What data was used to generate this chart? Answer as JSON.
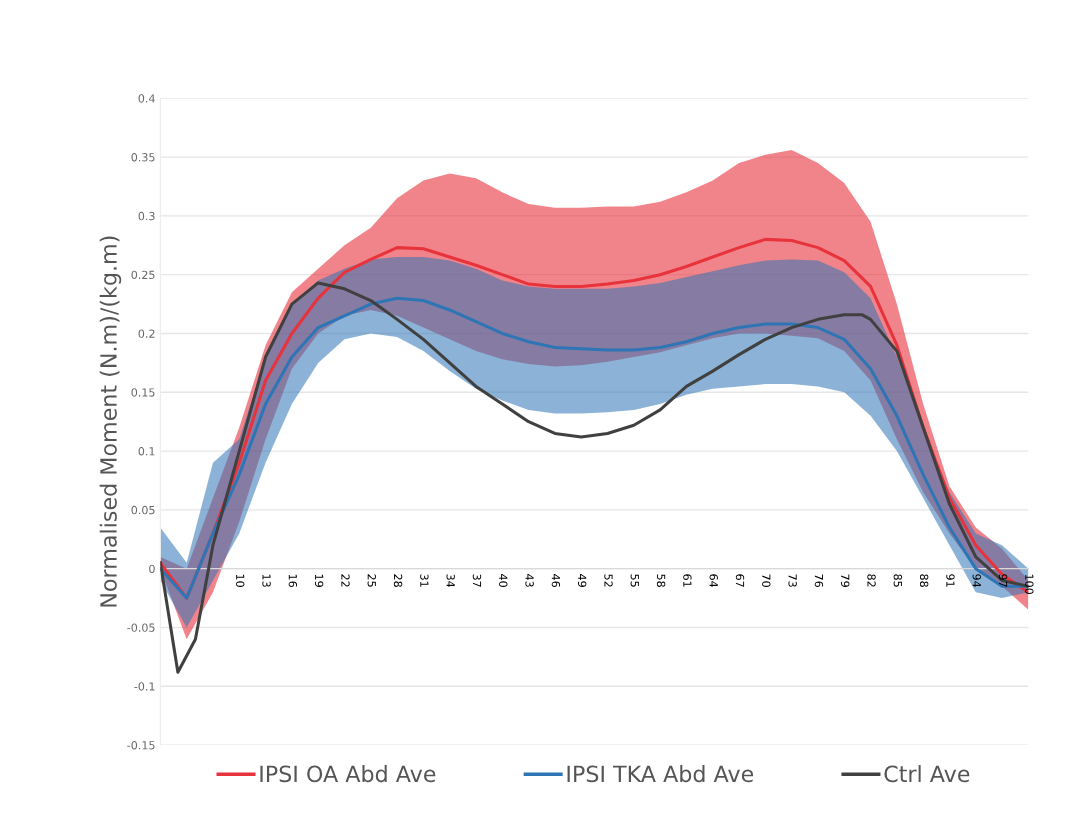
{
  "chart_data": {
    "type": "line",
    "ylabel": "Normalised Moment (N.m)/(kg.m)",
    "xlim": [
      1,
      100
    ],
    "xticks": [
      10,
      13,
      16,
      19,
      22,
      25,
      28,
      31,
      34,
      37,
      40,
      43,
      46,
      49,
      52,
      55,
      58,
      61,
      64,
      67,
      70,
      73,
      76,
      79,
      82,
      85,
      88,
      91,
      94,
      97,
      100
    ],
    "ylim": [
      -0.15,
      0.4
    ],
    "yticks": [
      -0.15,
      -0.1,
      -0.05,
      0,
      0.05,
      0.1,
      0.15,
      0.2,
      0.25,
      0.3,
      0.35,
      0.4
    ],
    "grid": "y",
    "legend": "bottom",
    "marker": "none",
    "line_style": "solid",
    "series": [
      {
        "name": "IPSI OA Abd Ave",
        "color": "#e8323c",
        "x": [
          1,
          4,
          7,
          10,
          13,
          16,
          19,
          22,
          25,
          28,
          31,
          34,
          37,
          40,
          43,
          46,
          49,
          52,
          55,
          58,
          61,
          64,
          67,
          70,
          73,
          76,
          79,
          82,
          85,
          88,
          91,
          94,
          97,
          100
        ],
        "values": [
          0.005,
          -0.025,
          0.03,
          0.09,
          0.16,
          0.2,
          0.23,
          0.252,
          0.263,
          0.273,
          0.272,
          0.265,
          0.258,
          0.25,
          0.242,
          0.24,
          0.24,
          0.242,
          0.245,
          0.25,
          0.257,
          0.265,
          0.273,
          0.28,
          0.279,
          0.273,
          0.262,
          0.24,
          0.19,
          0.12,
          0.06,
          0.02,
          -0.005,
          -0.02
        ],
        "upper": [
          0.01,
          0.0,
          0.06,
          0.12,
          0.19,
          0.235,
          0.255,
          0.275,
          0.29,
          0.315,
          0.33,
          0.336,
          0.332,
          0.32,
          0.31,
          0.307,
          0.307,
          0.308,
          0.308,
          0.312,
          0.32,
          0.33,
          0.345,
          0.352,
          0.356,
          0.345,
          0.328,
          0.295,
          0.225,
          0.14,
          0.07,
          0.035,
          0.017,
          -0.01
        ],
        "lower": [
          0.0,
          -0.06,
          -0.02,
          0.04,
          0.11,
          0.17,
          0.2,
          0.215,
          0.22,
          0.215,
          0.205,
          0.195,
          0.185,
          0.178,
          0.174,
          0.172,
          0.173,
          0.176,
          0.18,
          0.184,
          0.19,
          0.196,
          0.2,
          0.2,
          0.198,
          0.196,
          0.185,
          0.16,
          0.11,
          0.065,
          0.03,
          0.0,
          -0.015,
          -0.035
        ]
      },
      {
        "name": "IPSI TKA Abd Ave",
        "color": "#2e75b6",
        "x": [
          1,
          4,
          7,
          10,
          13,
          16,
          19,
          22,
          25,
          28,
          31,
          34,
          37,
          40,
          43,
          46,
          49,
          52,
          55,
          58,
          61,
          64,
          67,
          70,
          73,
          76,
          79,
          82,
          85,
          88,
          91,
          94,
          97,
          100
        ],
        "values": [
          0.0,
          -0.025,
          0.03,
          0.08,
          0.14,
          0.18,
          0.205,
          0.215,
          0.225,
          0.23,
          0.228,
          0.22,
          0.21,
          0.2,
          0.193,
          0.188,
          0.187,
          0.186,
          0.186,
          0.188,
          0.193,
          0.2,
          0.205,
          0.208,
          0.208,
          0.205,
          0.195,
          0.17,
          0.13,
          0.08,
          0.035,
          0.0,
          -0.015,
          -0.015
        ],
        "upper": [
          0.035,
          0.005,
          0.09,
          0.11,
          0.18,
          0.225,
          0.245,
          0.255,
          0.263,
          0.265,
          0.265,
          0.262,
          0.255,
          0.245,
          0.24,
          0.238,
          0.238,
          0.238,
          0.24,
          0.243,
          0.248,
          0.253,
          0.258,
          0.262,
          0.263,
          0.262,
          0.252,
          0.23,
          0.18,
          0.12,
          0.065,
          0.03,
          0.02,
          0.0
        ],
        "lower": [
          -0.01,
          -0.05,
          -0.01,
          0.03,
          0.09,
          0.14,
          0.175,
          0.195,
          0.2,
          0.197,
          0.185,
          0.168,
          0.153,
          0.143,
          0.135,
          0.132,
          0.132,
          0.133,
          0.135,
          0.14,
          0.148,
          0.153,
          0.155,
          0.157,
          0.157,
          0.155,
          0.15,
          0.13,
          0.1,
          0.06,
          0.02,
          -0.02,
          -0.025,
          -0.02
        ]
      },
      {
        "name": "Ctrl Ave",
        "color": "#404040",
        "x": [
          1,
          3,
          5,
          7,
          10,
          13,
          16,
          19,
          22,
          25,
          28,
          31,
          34,
          37,
          40,
          43,
          46,
          49,
          52,
          55,
          58,
          61,
          64,
          67,
          70,
          73,
          76,
          79,
          81,
          82,
          85,
          88,
          91,
          94,
          97,
          100
        ],
        "values": [
          0.005,
          -0.088,
          -0.06,
          0.02,
          0.1,
          0.18,
          0.225,
          0.243,
          0.238,
          0.228,
          0.212,
          0.195,
          0.175,
          0.155,
          0.14,
          0.125,
          0.115,
          0.112,
          0.115,
          0.122,
          0.135,
          0.155,
          0.168,
          0.182,
          0.195,
          0.205,
          0.212,
          0.216,
          0.216,
          0.212,
          0.185,
          0.12,
          0.055,
          0.01,
          -0.01,
          -0.015
        ]
      }
    ]
  }
}
